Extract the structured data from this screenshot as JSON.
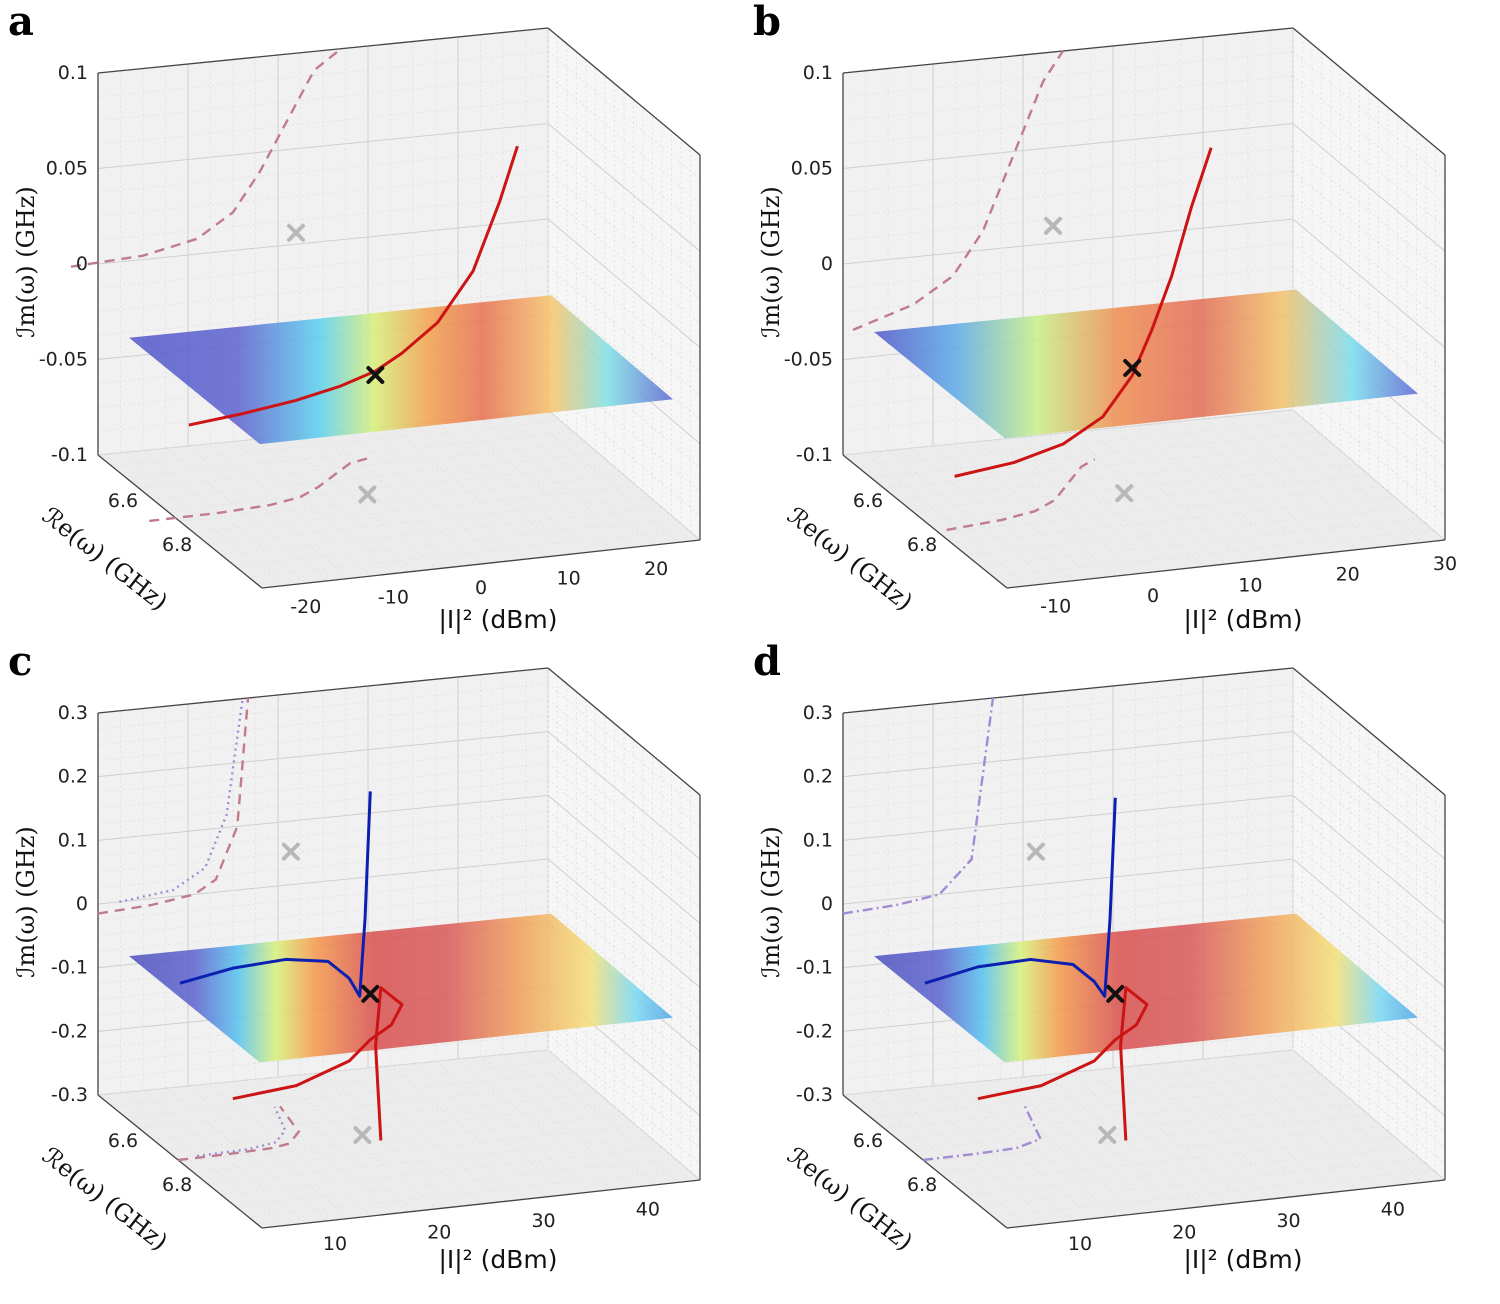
{
  "colors": {
    "pane": "#f1f1f1",
    "grid_major": "#cfcfcf",
    "grid_minor": "#e2e2e2",
    "box": "#444444",
    "red_curve": "#cc1414",
    "blue_curve": "#0b1fb0",
    "projection_red": "#c07b8f",
    "projection_purple": "#a28ad4",
    "plane_base": "#5157c9",
    "ep_marker": "#111111",
    "proj_marker": "#b8b8b8"
  },
  "chart_data": [
    {
      "panel": "a",
      "type": "surface3d",
      "xlabel": "|I|² (dBm)",
      "ylabel": "ℐm(ω) (GHz)",
      "zlabel": "ℛe(ω) (GHz)",
      "xlim": [
        -25,
        25
      ],
      "x_ticks": [
        "-20",
        "-10",
        "0",
        "10",
        "20"
      ],
      "im_ticks": [
        "0.1",
        "0.05",
        "0",
        "-0.05",
        "-0.1"
      ],
      "re_ticks": [
        "6.6",
        "6.8"
      ],
      "surface_peak": {
        "x": -3,
        "spread": "narrow"
      },
      "series": [
        {
          "style": "solid-red",
          "x": [
            -24,
            -18,
            -12,
            -7,
            -3,
            0,
            4,
            8,
            11,
            13
          ],
          "im": [
            -0.05,
            -0.047,
            -0.043,
            -0.038,
            -0.032,
            -0.024,
            -0.01,
            0.015,
            0.05,
            0.078
          ]
        },
        {
          "style": "dashed-projection",
          "x": [
            -28,
            -20,
            -14,
            -10,
            -7,
            -4,
            -1,
            2
          ],
          "im": [
            0,
            0.002,
            0.008,
            0.02,
            0.04,
            0.065,
            0.09,
            0.1
          ]
        }
      ],
      "exceptional_point": {
        "x": -3,
        "im": -0.034
      }
    },
    {
      "panel": "b",
      "type": "surface3d",
      "xlabel": "|I|² (dBm)",
      "ylabel": "ℐm(ω) (GHz)",
      "zlabel": "ℛe(ω) (GHz)",
      "xlim": [
        -15,
        30
      ],
      "x_ticks": [
        "-10",
        "0",
        "10",
        "20",
        "30"
      ],
      "im_ticks": [
        "0.1",
        "0.05",
        "0",
        "-0.05",
        "-0.1"
      ],
      "re_ticks": [
        "6.6",
        "6.8"
      ],
      "surface_peak": {
        "x": 6,
        "spread": "wide"
      },
      "series": [
        {
          "style": "solid-red",
          "x": [
            -12,
            -6,
            -1,
            3,
            6,
            8,
            10,
            12,
            14
          ],
          "im": [
            -0.078,
            -0.074,
            -0.067,
            -0.055,
            -0.035,
            -0.012,
            0.015,
            0.05,
            0.08
          ]
        },
        {
          "style": "dashed-projection",
          "x": [
            -14,
            -8,
            -4,
            -1,
            1,
            3,
            5,
            7
          ],
          "im": [
            -0.035,
            -0.025,
            -0.012,
            0.01,
            0.035,
            0.06,
            0.085,
            0.1
          ]
        }
      ],
      "exceptional_point": {
        "x": 6,
        "im": -0.031
      }
    },
    {
      "panel": "c",
      "type": "surface3d",
      "xlabel": "|I|² (dBm)",
      "ylabel": "ℐm(ω) (GHz)",
      "zlabel": "ℛe(ω) (GHz)",
      "xlim": [
        3,
        45
      ],
      "x_ticks": [
        "10",
        "20",
        "30",
        "40"
      ],
      "im_ticks": [
        "0.3",
        "0.2",
        "0.1",
        "0",
        "-0.1",
        "-0.2",
        "-0.3"
      ],
      "re_ticks": [
        "6.6",
        "6.8"
      ],
      "surface_peak": {
        "x": 22,
        "spread": "broad"
      },
      "series": [
        {
          "style": "solid-blue",
          "x": [
            3,
            8,
            13,
            17,
            19,
            20,
            20.5,
            21
          ],
          "im": [
            -0.02,
            -0.005,
            0.0,
            -0.01,
            -0.04,
            -0.07,
            0.05,
            0.25
          ]
        },
        {
          "style": "solid-red",
          "x": [
            8,
            14,
            19,
            21,
            23,
            24,
            22,
            21.5,
            22
          ],
          "im": [
            -0.21,
            -0.2,
            -0.17,
            -0.14,
            -0.12,
            -0.09,
            -0.06,
            -0.15,
            -0.3
          ]
        },
        {
          "style": "dashed-projection",
          "x": [
            3,
            8,
            12,
            14,
            16,
            17
          ],
          "im": [
            -0.015,
            -0.01,
            0.0,
            0.02,
            0.1,
            0.3
          ]
        },
        {
          "style": "dotted-projection",
          "x": [
            5,
            10,
            13,
            15,
            16.5
          ],
          "im": [
            0.0,
            0.01,
            0.04,
            0.12,
            0.3
          ]
        }
      ],
      "exceptional_point": {
        "x": 21,
        "im": -0.068
      }
    },
    {
      "panel": "d",
      "type": "surface3d",
      "xlabel": "|I|² (dBm)",
      "ylabel": "ℐm(ω) (GHz)",
      "zlabel": "ℛe(ω) (GHz)",
      "xlim": [
        3,
        45
      ],
      "x_ticks": [
        "10",
        "20",
        "30",
        "40"
      ],
      "im_ticks": [
        "0.3",
        "0.2",
        "0.1",
        "0",
        "-0.1",
        "-0.2",
        "-0.3"
      ],
      "re_ticks": [
        "6.6",
        "6.8"
      ],
      "surface_peak": {
        "x": 19,
        "spread": "broad"
      },
      "series": [
        {
          "style": "solid-blue",
          "x": [
            3,
            8,
            13,
            17,
            19,
            20,
            20.5,
            21
          ],
          "im": [
            -0.02,
            -0.003,
            0.0,
            -0.015,
            -0.045,
            -0.07,
            0.05,
            0.24
          ]
        },
        {
          "style": "solid-red",
          "x": [
            8,
            14,
            19,
            21,
            23,
            24,
            22,
            21.5,
            22
          ],
          "im": [
            -0.21,
            -0.2,
            -0.17,
            -0.14,
            -0.12,
            -0.09,
            -0.06,
            -0.15,
            -0.3
          ]
        },
        {
          "style": "dashdot-projection",
          "x": [
            3,
            8,
            12,
            15,
            17
          ],
          "im": [
            -0.015,
            -0.01,
            0.0,
            0.05,
            0.3
          ]
        }
      ],
      "exceptional_point": {
        "x": 21,
        "im": -0.068
      }
    }
  ]
}
